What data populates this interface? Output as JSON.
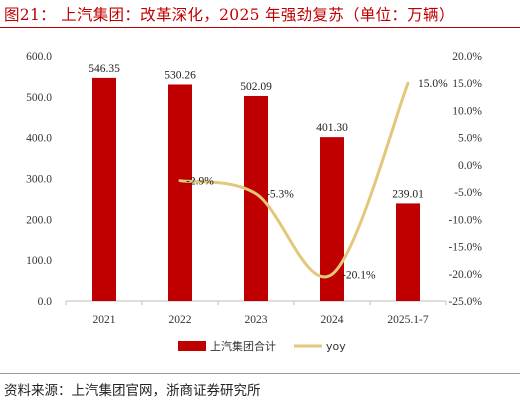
{
  "figure": {
    "title": "图21： 上汽集团：改革深化，2025 年强劲复苏（单位：万辆）",
    "source": "资料来源：上汽集团官网，浙商证券研究所"
  },
  "chart_data": {
    "type": "bar",
    "categories": [
      "2021",
      "2022",
      "2023",
      "2024",
      "2025.1-7"
    ],
    "series": [
      {
        "name": "上汽集团合计",
        "type": "bar",
        "axis": "left",
        "values": [
          546.35,
          530.26,
          502.09,
          401.3,
          239.01
        ],
        "labels": [
          "546.35",
          "530.26",
          "502.09",
          "401.30",
          "239.01"
        ]
      },
      {
        "name": "yoy",
        "type": "line",
        "axis": "right",
        "x": [
          "2022",
          "2023",
          "2024",
          "2025.1-7"
        ],
        "values": [
          -2.9,
          -5.3,
          -20.1,
          15.0
        ],
        "labels": [
          "-2.9%",
          "-5.3%",
          "-20.1%",
          "15.0%"
        ]
      }
    ],
    "y_left": {
      "range": [
        0,
        600
      ],
      "ticks": [
        "0.0",
        "100.0",
        "200.0",
        "300.0",
        "400.0",
        "500.0",
        "600.0"
      ]
    },
    "y_right": {
      "range": [
        -25,
        20
      ],
      "ticks": [
        "-25.0%",
        "-20.0%",
        "-15.0%",
        "-10.0%",
        "-5.0%",
        "0.0%",
        "5.0%",
        "10.0%",
        "15.0%",
        "20.0%"
      ]
    },
    "grid": false,
    "legend": "bottom-center",
    "colors": {
      "bar": "#c00000",
      "line": "#e3c77a",
      "title": "#c00000"
    }
  }
}
